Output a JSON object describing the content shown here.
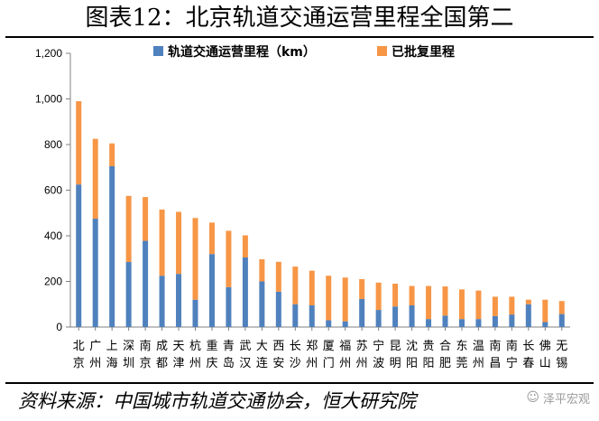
{
  "title": "图表12：北京轨道交通运营里程全国第二",
  "source": "资料来源：中国城市轨道交通协会，恒大研究院",
  "watermark": {
    "text": "泽平宏观",
    "icon": "wechat-icon"
  },
  "colors": {
    "operating": "#4f81bd",
    "approved": "#f79646",
    "axis": "#808080",
    "rule": "#000000"
  },
  "chart_data": {
    "type": "bar",
    "stacked": true,
    "categories": [
      "北京",
      "广州",
      "上海",
      "深圳",
      "南京",
      "成都",
      "天津",
      "杭州",
      "重庆",
      "青岛",
      "武汉",
      "大连",
      "西安",
      "长沙",
      "郑州",
      "厦门",
      "福州",
      "苏州",
      "宁波",
      "昆明",
      "沈阳",
      "贵阳",
      "合肥",
      "东莞",
      "温州",
      "南昌",
      "南宁",
      "长春",
      "佛山",
      "无锡"
    ],
    "series": [
      {
        "name": "轨道交通运营里程（km）",
        "color": "#4f81bd",
        "values": [
          625,
          475,
          705,
          285,
          378,
          225,
          233,
          120,
          320,
          175,
          305,
          200,
          155,
          100,
          95,
          30,
          25,
          123,
          75,
          90,
          95,
          35,
          50,
          35,
          35,
          48,
          55,
          100,
          22,
          57
        ]
      },
      {
        "name": "已批复里程",
        "color": "#f79646",
        "values": [
          365,
          350,
          100,
          290,
          192,
          290,
          272,
          358,
          138,
          247,
          97,
          97,
          131,
          165,
          152,
          195,
          192,
          87,
          120,
          100,
          85,
          145,
          128,
          130,
          125,
          85,
          78,
          20,
          98,
          57
        ]
      }
    ],
    "ylim": [
      0,
      1200
    ],
    "yticks": [
      "0",
      "200",
      "400",
      "600",
      "800",
      "1,000",
      "1,200"
    ],
    "legend": "top-center",
    "grid": false
  }
}
